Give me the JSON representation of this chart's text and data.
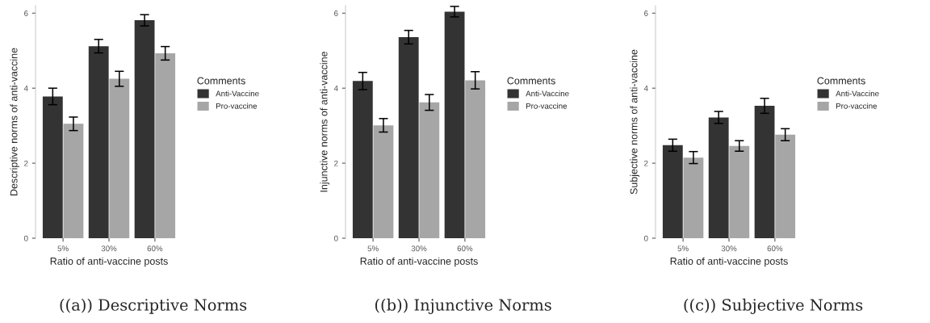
{
  "chart_data": [
    {
      "type": "bar",
      "title": "((a)) Descriptive Norms",
      "xlabel": "Ratio of anti-vaccine posts",
      "ylabel": "Descriptive norms of anti-vaccine",
      "legend_title": "Comments",
      "legend": "right",
      "grid": false,
      "categories": [
        "5%",
        "30%",
        "60%"
      ],
      "ylim": [
        0,
        6.2
      ],
      "yticks": [
        0,
        2,
        4,
        6
      ],
      "series": [
        {
          "name": "Anti-Vaccine",
          "color": "#333333",
          "values": [
            3.78,
            5.12,
            5.81
          ],
          "errors": [
            0.22,
            0.18,
            0.15
          ]
        },
        {
          "name": "Pro-vaccine",
          "color": "#a6a6a6",
          "values": [
            3.05,
            4.25,
            4.93
          ],
          "errors": [
            0.18,
            0.2,
            0.18
          ]
        }
      ]
    },
    {
      "type": "bar",
      "title": "((b)) Injunctive Norms",
      "xlabel": "Ratio of anti-vaccine posts",
      "ylabel": "Injunctive norms of anti-vaccine",
      "legend_title": "Comments",
      "legend": "right",
      "grid": false,
      "categories": [
        "5%",
        "30%",
        "60%"
      ],
      "ylim": [
        0,
        6.2
      ],
      "yticks": [
        0,
        2,
        4,
        6
      ],
      "series": [
        {
          "name": "Anti-Vaccine",
          "color": "#333333",
          "values": [
            4.19,
            5.36,
            6.04
          ],
          "errors": [
            0.23,
            0.18,
            0.14
          ]
        },
        {
          "name": "Pro-vaccine",
          "color": "#a6a6a6",
          "values": [
            3.01,
            3.62,
            4.21
          ],
          "errors": [
            0.18,
            0.21,
            0.23
          ]
        }
      ]
    },
    {
      "type": "bar",
      "title": "((c)) Subjective Norms",
      "xlabel": "Ratio of anti-vaccine posts",
      "ylabel": "Subjective norms of anti-vaccine",
      "legend_title": "Comments",
      "legend": "right",
      "grid": false,
      "categories": [
        "5%",
        "30%",
        "60%"
      ],
      "ylim": [
        0,
        6.2
      ],
      "yticks": [
        0,
        2,
        4,
        6
      ],
      "series": [
        {
          "name": "Anti-Vaccine",
          "color": "#333333",
          "values": [
            2.48,
            3.22,
            3.53
          ],
          "errors": [
            0.16,
            0.16,
            0.2
          ]
        },
        {
          "name": "Pro-vaccine",
          "color": "#a6a6a6",
          "values": [
            2.15,
            2.46,
            2.76
          ],
          "errors": [
            0.16,
            0.14,
            0.16
          ]
        }
      ]
    }
  ]
}
